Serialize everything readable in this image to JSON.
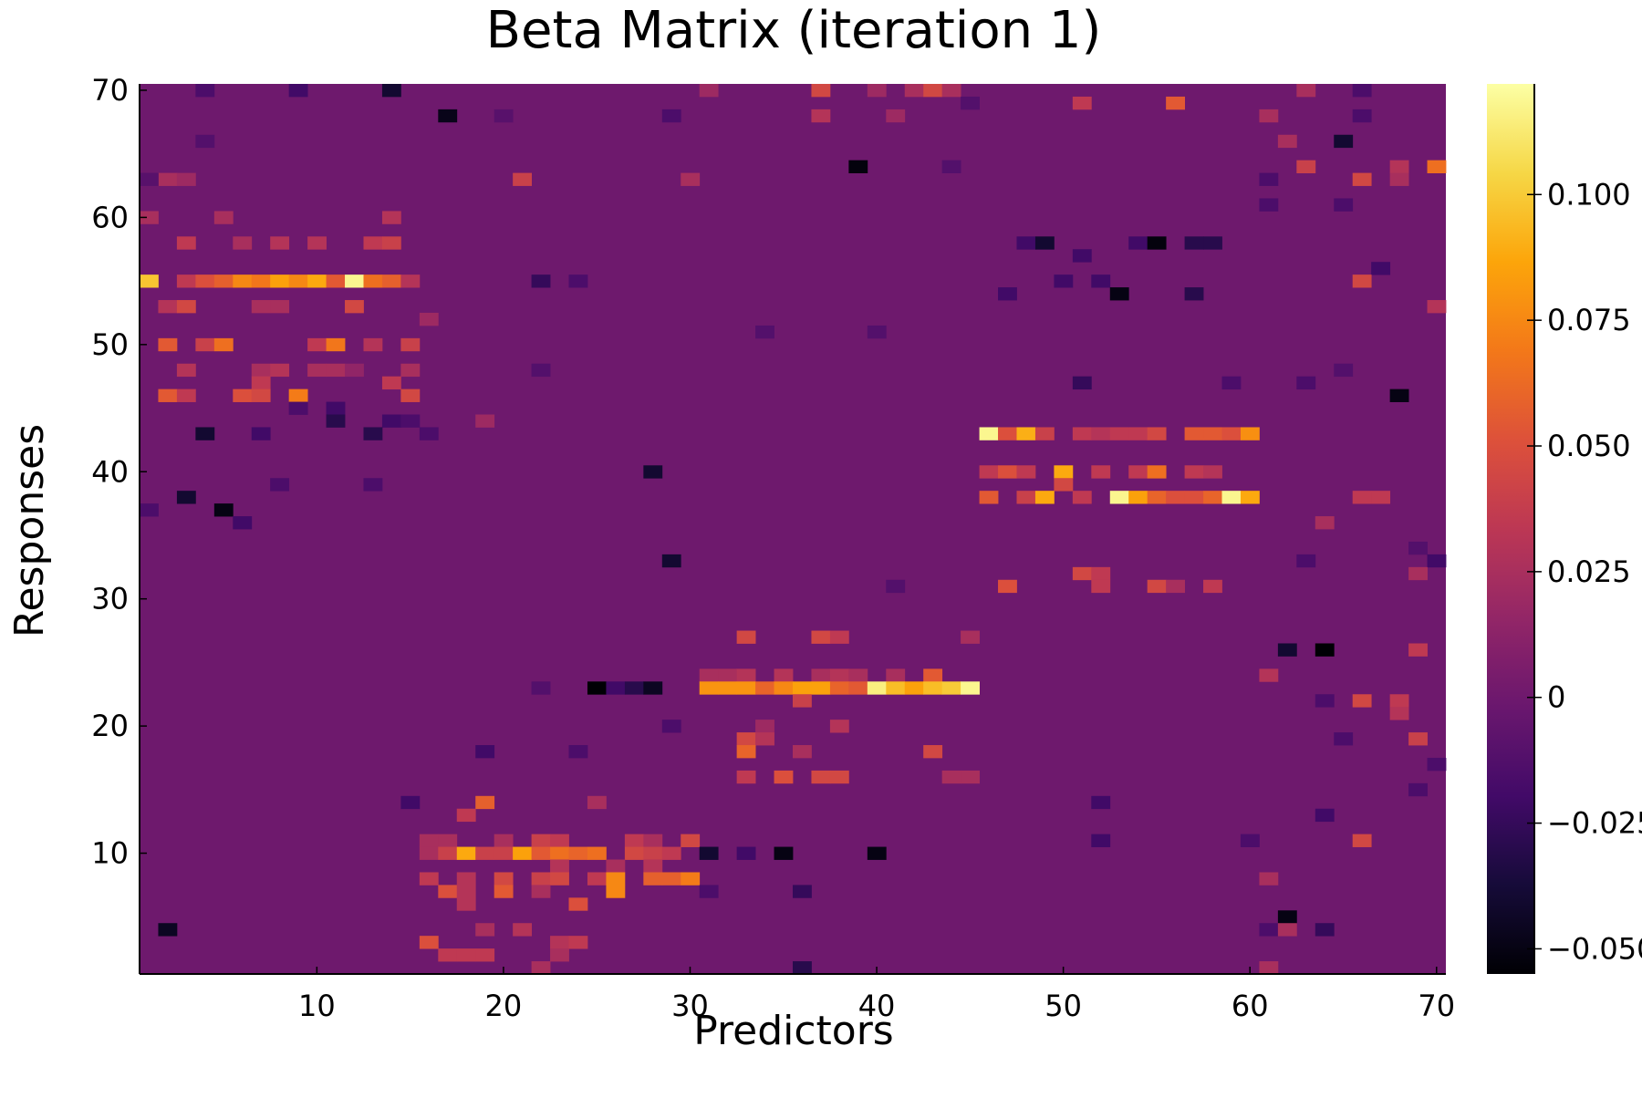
{
  "chart_data": {
    "type": "heatmap",
    "title": "Beta Matrix (iteration 1)",
    "xlabel": "Predictors",
    "ylabel": "Responses",
    "xlim": [
      0.5,
      70.5
    ],
    "ylim": [
      0.5,
      70.5
    ],
    "x_ticks": [
      10,
      20,
      30,
      40,
      50,
      60,
      70
    ],
    "y_ticks": [
      10,
      20,
      30,
      40,
      50,
      60,
      70
    ],
    "colormap": "inferno",
    "colorbar": {
      "range": [
        -0.055,
        0.122
      ],
      "ticks": [
        -0.05,
        -0.025,
        0,
        0.025,
        0.05,
        0.075,
        0.1
      ],
      "tick_labels": [
        "−0.050",
        "−0.025",
        "0",
        "0.025",
        "0.050",
        "0.075",
        "0.100"
      ]
    },
    "background_value": 0,
    "grid": false,
    "cells": [
      [
        1,
        55,
        0.098
      ],
      [
        3,
        55,
        0.035
      ],
      [
        4,
        55,
        0.05
      ],
      [
        5,
        55,
        0.058
      ],
      [
        6,
        55,
        0.075
      ],
      [
        7,
        55,
        0.068
      ],
      [
        8,
        55,
        0.085
      ],
      [
        9,
        55,
        0.075
      ],
      [
        10,
        55,
        0.088
      ],
      [
        11,
        55,
        0.055
      ],
      [
        12,
        55,
        0.118
      ],
      [
        13,
        55,
        0.065
      ],
      [
        14,
        55,
        0.058
      ],
      [
        15,
        55,
        0.03
      ],
      [
        3,
        58,
        0.035
      ],
      [
        6,
        58,
        0.025
      ],
      [
        8,
        58,
        0.03
      ],
      [
        10,
        58,
        0.03
      ],
      [
        13,
        58,
        0.035
      ],
      [
        14,
        58,
        0.04
      ],
      [
        1,
        60,
        0.025
      ],
      [
        5,
        60,
        0.025
      ],
      [
        14,
        60,
        0.03
      ],
      [
        2,
        53,
        0.03
      ],
      [
        3,
        53,
        0.045
      ],
      [
        7,
        53,
        0.025
      ],
      [
        8,
        53,
        0.025
      ],
      [
        12,
        53,
        0.045
      ],
      [
        16,
        52,
        0.02
      ],
      [
        2,
        50,
        0.055
      ],
      [
        4,
        50,
        0.04
      ],
      [
        5,
        50,
        0.065
      ],
      [
        10,
        50,
        0.035
      ],
      [
        11,
        50,
        0.068
      ],
      [
        13,
        50,
        0.03
      ],
      [
        15,
        50,
        0.04
      ],
      [
        3,
        48,
        0.03
      ],
      [
        7,
        48,
        0.025
      ],
      [
        8,
        48,
        0.03
      ],
      [
        10,
        48,
        0.025
      ],
      [
        11,
        48,
        0.025
      ],
      [
        12,
        48,
        0.015
      ],
      [
        15,
        48,
        0.025
      ],
      [
        7,
        47,
        0.035
      ],
      [
        14,
        47,
        0.035
      ],
      [
        2,
        46,
        0.055
      ],
      [
        3,
        46,
        0.035
      ],
      [
        6,
        46,
        0.05
      ],
      [
        7,
        46,
        0.045
      ],
      [
        9,
        46,
        0.07
      ],
      [
        15,
        46,
        0.045
      ],
      [
        19,
        44,
        0.02
      ],
      [
        2,
        63,
        0.025
      ],
      [
        3,
        63,
        0.02
      ],
      [
        4,
        70,
        -0.015
      ],
      [
        9,
        70,
        -0.02
      ],
      [
        14,
        70,
        -0.04
      ],
      [
        17,
        68,
        -0.048
      ],
      [
        20,
        68,
        -0.01
      ],
      [
        4,
        66,
        -0.012
      ],
      [
        1,
        63,
        -0.01
      ],
      [
        9,
        45,
        -0.015
      ],
      [
        11,
        45,
        -0.02
      ],
      [
        11,
        44,
        -0.03
      ],
      [
        14,
        44,
        -0.02
      ],
      [
        15,
        44,
        -0.015
      ],
      [
        16,
        43,
        -0.015
      ],
      [
        4,
        43,
        -0.04
      ],
      [
        7,
        43,
        -0.02
      ],
      [
        13,
        43,
        -0.03
      ],
      [
        8,
        39,
        -0.015
      ],
      [
        13,
        39,
        -0.015
      ],
      [
        3,
        38,
        -0.04
      ],
      [
        5,
        37,
        -0.05
      ],
      [
        6,
        36,
        -0.02
      ],
      [
        1,
        37,
        -0.015
      ],
      [
        21,
        63,
        0.04
      ],
      [
        30,
        63,
        0.025
      ],
      [
        29,
        68,
        -0.015
      ],
      [
        31,
        70,
        0.02
      ],
      [
        37,
        70,
        0.045
      ],
      [
        40,
        70,
        0.02
      ],
      [
        42,
        70,
        0.025
      ],
      [
        43,
        70,
        0.045
      ],
      [
        44,
        70,
        0.025
      ],
      [
        45,
        69,
        -0.012
      ],
      [
        37,
        68,
        0.03
      ],
      [
        41,
        68,
        0.02
      ],
      [
        39,
        64,
        -0.052
      ],
      [
        44,
        64,
        -0.012
      ],
      [
        22,
        55,
        -0.025
      ],
      [
        24,
        55,
        -0.015
      ],
      [
        34,
        51,
        -0.012
      ],
      [
        40,
        51,
        -0.012
      ],
      [
        22,
        48,
        -0.012
      ],
      [
        28,
        40,
        -0.04
      ],
      [
        29,
        33,
        -0.04
      ],
      [
        41,
        31,
        -0.012
      ],
      [
        33,
        27,
        0.045
      ],
      [
        37,
        27,
        0.045
      ],
      [
        38,
        27,
        0.035
      ],
      [
        45,
        27,
        0.025
      ],
      [
        31,
        24,
        0.025
      ],
      [
        32,
        24,
        0.025
      ],
      [
        33,
        24,
        0.03
      ],
      [
        35,
        24,
        0.03
      ],
      [
        37,
        24,
        0.025
      ],
      [
        38,
        24,
        0.03
      ],
      [
        39,
        24,
        0.025
      ],
      [
        41,
        24,
        0.025
      ],
      [
        43,
        24,
        0.055
      ],
      [
        22,
        23,
        -0.012
      ],
      [
        25,
        23,
        -0.055
      ],
      [
        26,
        23,
        -0.02
      ],
      [
        27,
        23,
        -0.03
      ],
      [
        28,
        23,
        -0.045
      ],
      [
        31,
        23,
        0.08
      ],
      [
        32,
        23,
        0.08
      ],
      [
        33,
        23,
        0.08
      ],
      [
        34,
        23,
        0.06
      ],
      [
        35,
        23,
        0.075
      ],
      [
        36,
        23,
        0.085
      ],
      [
        37,
        23,
        0.085
      ],
      [
        38,
        23,
        0.06
      ],
      [
        39,
        23,
        0.055
      ],
      [
        40,
        23,
        0.115
      ],
      [
        41,
        23,
        0.095
      ],
      [
        42,
        23,
        0.085
      ],
      [
        43,
        23,
        0.095
      ],
      [
        44,
        23,
        0.1
      ],
      [
        45,
        23,
        0.118
      ],
      [
        36,
        22,
        0.04
      ],
      [
        29,
        20,
        -0.015
      ],
      [
        34,
        20,
        0.02
      ],
      [
        38,
        20,
        0.03
      ],
      [
        33,
        19,
        0.045
      ],
      [
        34,
        19,
        0.03
      ],
      [
        33,
        18,
        0.06
      ],
      [
        36,
        18,
        0.025
      ],
      [
        43,
        18,
        0.045
      ],
      [
        33,
        16,
        0.035
      ],
      [
        35,
        16,
        0.05
      ],
      [
        37,
        16,
        0.045
      ],
      [
        38,
        16,
        0.045
      ],
      [
        44,
        16,
        0.025
      ],
      [
        45,
        16,
        0.025
      ],
      [
        19,
        18,
        -0.02
      ],
      [
        24,
        18,
        -0.015
      ],
      [
        15,
        14,
        -0.02
      ],
      [
        19,
        14,
        0.058
      ],
      [
        18,
        13,
        0.035
      ],
      [
        25,
        14,
        0.025
      ],
      [
        16,
        11,
        0.025
      ],
      [
        17,
        11,
        0.025
      ],
      [
        20,
        11,
        0.025
      ],
      [
        22,
        11,
        0.04
      ],
      [
        23,
        11,
        0.035
      ],
      [
        27,
        11,
        0.035
      ],
      [
        28,
        11,
        0.025
      ],
      [
        30,
        11,
        0.045
      ],
      [
        16,
        10,
        0.025
      ],
      [
        17,
        10,
        0.04
      ],
      [
        18,
        10,
        0.088
      ],
      [
        19,
        10,
        0.04
      ],
      [
        20,
        10,
        0.04
      ],
      [
        21,
        10,
        0.085
      ],
      [
        22,
        10,
        0.055
      ],
      [
        23,
        10,
        0.065
      ],
      [
        24,
        10,
        0.06
      ],
      [
        25,
        10,
        0.065
      ],
      [
        27,
        10,
        0.045
      ],
      [
        28,
        10,
        0.04
      ],
      [
        29,
        10,
        0.035
      ],
      [
        31,
        10,
        -0.04
      ],
      [
        33,
        10,
        -0.02
      ],
      [
        35,
        10,
        -0.05
      ],
      [
        40,
        10,
        -0.05
      ],
      [
        23,
        9,
        0.03
      ],
      [
        26,
        9,
        0.025
      ],
      [
        28,
        9,
        0.03
      ],
      [
        16,
        8,
        0.035
      ],
      [
        18,
        8,
        0.03
      ],
      [
        20,
        8,
        0.045
      ],
      [
        22,
        8,
        0.04
      ],
      [
        23,
        8,
        0.045
      ],
      [
        25,
        8,
        0.035
      ],
      [
        26,
        8,
        0.075
      ],
      [
        28,
        8,
        0.058
      ],
      [
        29,
        8,
        0.058
      ],
      [
        30,
        8,
        0.07
      ],
      [
        17,
        7,
        0.05
      ],
      [
        18,
        7,
        0.03
      ],
      [
        20,
        7,
        0.055
      ],
      [
        22,
        7,
        0.025
      ],
      [
        26,
        7,
        0.075
      ],
      [
        31,
        7,
        -0.015
      ],
      [
        36,
        7,
        -0.025
      ],
      [
        18,
        6,
        0.03
      ],
      [
        24,
        6,
        0.05
      ],
      [
        19,
        4,
        0.025
      ],
      [
        21,
        4,
        0.03
      ],
      [
        23,
        3,
        0.03
      ],
      [
        24,
        3,
        0.035
      ],
      [
        16,
        3,
        0.05
      ],
      [
        17,
        2,
        0.035
      ],
      [
        18,
        2,
        0.035
      ],
      [
        19,
        2,
        0.035
      ],
      [
        23,
        2,
        0.025
      ],
      [
        22,
        1,
        0.025
      ],
      [
        36,
        1,
        -0.03
      ],
      [
        2,
        4,
        -0.045
      ],
      [
        46,
        43,
        0.118
      ],
      [
        47,
        43,
        0.05
      ],
      [
        48,
        43,
        0.09
      ],
      [
        49,
        43,
        0.04
      ],
      [
        51,
        43,
        0.035
      ],
      [
        52,
        43,
        0.03
      ],
      [
        53,
        43,
        0.035
      ],
      [
        54,
        43,
        0.035
      ],
      [
        55,
        43,
        0.045
      ],
      [
        57,
        43,
        0.055
      ],
      [
        58,
        43,
        0.055
      ],
      [
        59,
        43,
        0.05
      ],
      [
        60,
        43,
        0.078
      ],
      [
        46,
        40,
        0.035
      ],
      [
        47,
        40,
        0.05
      ],
      [
        48,
        40,
        0.035
      ],
      [
        50,
        40,
        0.088
      ],
      [
        52,
        40,
        0.035
      ],
      [
        54,
        40,
        0.035
      ],
      [
        55,
        40,
        0.065
      ],
      [
        57,
        40,
        0.035
      ],
      [
        58,
        40,
        0.03
      ],
      [
        50,
        39,
        0.045
      ],
      [
        46,
        38,
        0.055
      ],
      [
        48,
        38,
        0.04
      ],
      [
        49,
        38,
        0.088
      ],
      [
        51,
        38,
        0.035
      ],
      [
        53,
        38,
        0.118
      ],
      [
        54,
        38,
        0.085
      ],
      [
        55,
        38,
        0.06
      ],
      [
        56,
        38,
        0.05
      ],
      [
        57,
        38,
        0.05
      ],
      [
        58,
        38,
        0.06
      ],
      [
        59,
        38,
        0.118
      ],
      [
        60,
        38,
        0.088
      ],
      [
        51,
        32,
        0.045
      ],
      [
        52,
        32,
        0.035
      ],
      [
        47,
        31,
        0.05
      ],
      [
        52,
        31,
        0.035
      ],
      [
        55,
        31,
        0.045
      ],
      [
        56,
        31,
        0.025
      ],
      [
        58,
        31,
        0.035
      ],
      [
        48,
        58,
        -0.02
      ],
      [
        49,
        58,
        -0.04
      ],
      [
        54,
        58,
        -0.02
      ],
      [
        55,
        58,
        -0.052
      ],
      [
        57,
        58,
        -0.03
      ],
      [
        58,
        58,
        -0.03
      ],
      [
        51,
        57,
        -0.02
      ],
      [
        50,
        55,
        -0.02
      ],
      [
        52,
        55,
        -0.02
      ],
      [
        47,
        54,
        -0.02
      ],
      [
        53,
        54,
        -0.05
      ],
      [
        57,
        54,
        -0.03
      ],
      [
        51,
        47,
        -0.025
      ],
      [
        51,
        69,
        0.035
      ],
      [
        56,
        69,
        0.055
      ],
      [
        61,
        68,
        0.025
      ],
      [
        62,
        66,
        0.025
      ],
      [
        63,
        70,
        0.025
      ],
      [
        66,
        70,
        -0.015
      ],
      [
        66,
        68,
        -0.015
      ],
      [
        65,
        66,
        -0.04
      ],
      [
        63,
        64,
        0.04
      ],
      [
        66,
        63,
        0.045
      ],
      [
        68,
        64,
        0.03
      ],
      [
        68,
        63,
        0.025
      ],
      [
        70,
        64,
        0.065
      ],
      [
        61,
        63,
        -0.015
      ],
      [
        61,
        61,
        -0.015
      ],
      [
        65,
        61,
        -0.015
      ],
      [
        67,
        56,
        -0.02
      ],
      [
        66,
        55,
        0.045
      ],
      [
        70,
        53,
        0.03
      ],
      [
        65,
        48,
        -0.012
      ],
      [
        63,
        47,
        -0.015
      ],
      [
        59,
        47,
        -0.015
      ],
      [
        68,
        46,
        -0.05
      ],
      [
        66,
        38,
        0.035
      ],
      [
        67,
        38,
        0.035
      ],
      [
        64,
        36,
        0.025
      ],
      [
        69,
        34,
        -0.012
      ],
      [
        63,
        33,
        -0.015
      ],
      [
        70,
        33,
        -0.02
      ],
      [
        69,
        32,
        0.025
      ],
      [
        62,
        26,
        -0.04
      ],
      [
        64,
        26,
        -0.055
      ],
      [
        69,
        26,
        0.035
      ],
      [
        61,
        24,
        0.03
      ],
      [
        64,
        22,
        -0.015
      ],
      [
        66,
        22,
        0.045
      ],
      [
        68,
        22,
        0.035
      ],
      [
        68,
        21,
        0.03
      ],
      [
        65,
        19,
        -0.015
      ],
      [
        69,
        19,
        0.04
      ],
      [
        70,
        17,
        -0.015
      ],
      [
        69,
        15,
        -0.015
      ],
      [
        52,
        14,
        -0.02
      ],
      [
        64,
        13,
        -0.02
      ],
      [
        52,
        11,
        -0.02
      ],
      [
        60,
        11,
        -0.015
      ],
      [
        66,
        11,
        0.045
      ],
      [
        61,
        8,
        0.025
      ],
      [
        62,
        5,
        -0.05
      ],
      [
        61,
        4,
        -0.015
      ],
      [
        62,
        4,
        0.025
      ],
      [
        64,
        4,
        -0.025
      ],
      [
        61,
        1,
        0.025
      ]
    ]
  }
}
